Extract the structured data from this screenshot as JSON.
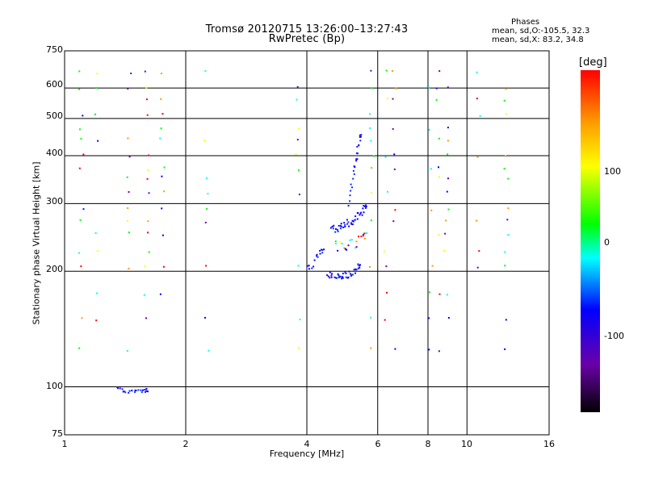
{
  "chart_data": {
    "type": "scatter",
    "title": "Tromsø 20120715 13:26:00–13:27:43",
    "subtitle": "RwPretec (Bp)",
    "xlabel": "Frequency [MHz]",
    "ylabel": "Stationary phase Virtual Height [km]",
    "x_scale": "log",
    "y_scale": "log",
    "xlim": [
      1,
      16
    ],
    "ylim": [
      75,
      750
    ],
    "x_ticks": [
      "1",
      "2",
      "4",
      "6",
      "8",
      "10",
      "16"
    ],
    "y_ticks": [
      "75",
      "100",
      "200",
      "300",
      "400",
      "500",
      "600",
      "750"
    ],
    "grid": true,
    "colorbar": {
      "label": "[deg]",
      "ticks": [
        "100",
        "0",
        "-100"
      ],
      "range": [
        -180,
        180
      ],
      "colors": [
        "#000000",
        "#6a00a8",
        "#0000ff",
        "#00ffff",
        "#00ff00",
        "#ffff00",
        "#ff9900",
        "#ff0000"
      ]
    },
    "legend": {
      "heading": "Phases",
      "line_o": "mean, sd,O:-105.5, 32.3",
      "line_x": "mean, sd,X:  83.2, 34.8"
    },
    "trace_o_low": [
      {
        "x": 1.35,
        "y": 99
      },
      {
        "x": 1.4,
        "y": 98
      },
      {
        "x": 1.45,
        "y": 97
      },
      {
        "x": 1.5,
        "y": 98
      },
      {
        "x": 1.55,
        "y": 97
      },
      {
        "x": 1.6,
        "y": 98
      }
    ],
    "trace_o_e": [
      {
        "x": 4.0,
        "y": 207
      },
      {
        "x": 4.1,
        "y": 204
      },
      {
        "x": 4.2,
        "y": 216
      },
      {
        "x": 4.3,
        "y": 224
      },
      {
        "x": 4.4,
        "y": 226
      }
    ],
    "trace_o_f": [
      {
        "x": 4.5,
        "y": 197
      },
      {
        "x": 4.6,
        "y": 195
      },
      {
        "x": 4.7,
        "y": 194
      },
      {
        "x": 4.8,
        "y": 193
      },
      {
        "x": 4.9,
        "y": 194
      },
      {
        "x": 5.0,
        "y": 195
      },
      {
        "x": 5.1,
        "y": 196
      },
      {
        "x": 5.2,
        "y": 198
      },
      {
        "x": 5.3,
        "y": 201
      },
      {
        "x": 5.4,
        "y": 206
      }
    ],
    "trace_o_f2": [
      {
        "x": 4.6,
        "y": 255
      },
      {
        "x": 4.7,
        "y": 258
      },
      {
        "x": 4.8,
        "y": 260
      },
      {
        "x": 4.9,
        "y": 262
      },
      {
        "x": 5.0,
        "y": 265
      },
      {
        "x": 5.1,
        "y": 268
      },
      {
        "x": 5.2,
        "y": 270
      },
      {
        "x": 5.3,
        "y": 275
      },
      {
        "x": 5.4,
        "y": 282
      },
      {
        "x": 5.5,
        "y": 288
      },
      {
        "x": 5.6,
        "y": 292
      }
    ],
    "trace_o_f2_mid": [
      {
        "x": 4.7,
        "y": 235
      },
      {
        "x": 4.85,
        "y": 233
      },
      {
        "x": 5.0,
        "y": 232
      },
      {
        "x": 5.15,
        "y": 236
      },
      {
        "x": 5.3,
        "y": 238
      },
      {
        "x": 5.45,
        "y": 240
      },
      {
        "x": 5.6,
        "y": 243
      }
    ],
    "trace_o_steep": [
      {
        "x": 5.1,
        "y": 300
      },
      {
        "x": 5.15,
        "y": 320
      },
      {
        "x": 5.2,
        "y": 350
      },
      {
        "x": 5.25,
        "y": 370
      },
      {
        "x": 5.3,
        "y": 390
      },
      {
        "x": 5.35,
        "y": 410
      },
      {
        "x": 5.4,
        "y": 430
      },
      {
        "x": 5.45,
        "y": 450
      }
    ],
    "scatter_columns_x": [
      1.1,
      1.2,
      1.45,
      1.6,
      1.75,
      2.25,
      3.8,
      5.8,
      6.3,
      6.6,
      8.1,
      8.5,
      8.9,
      10.7,
      12.5
    ],
    "scatter_rows_y": [
      660,
      600,
      560,
      510,
      470,
      440,
      400,
      370,
      350,
      320,
      290,
      270,
      250,
      225,
      205,
      175,
      150,
      125
    ]
  }
}
